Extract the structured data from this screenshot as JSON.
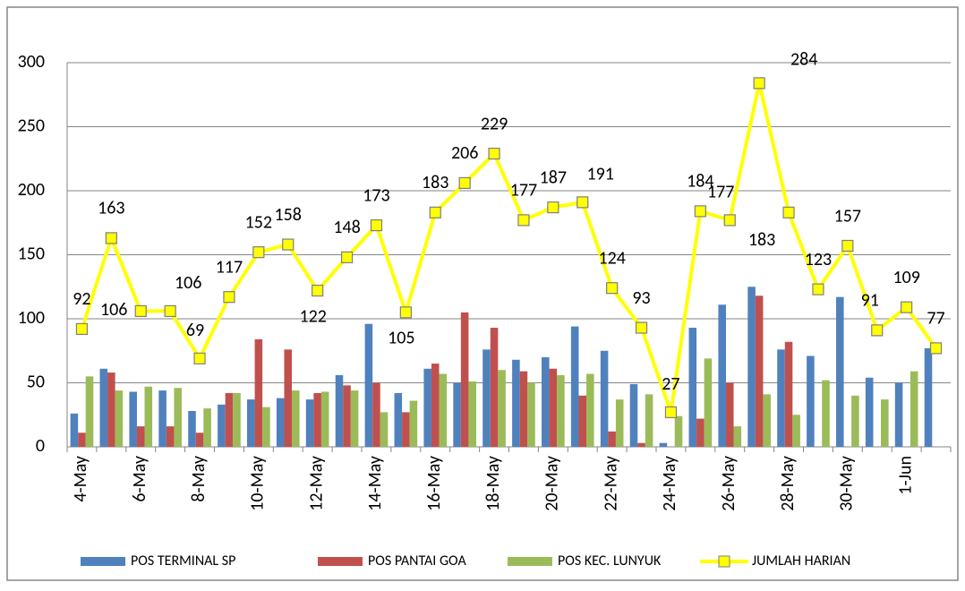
{
  "chart_data": {
    "type": "bar-line",
    "categories": [
      "4-May",
      null,
      "6-May",
      null,
      "8-May",
      null,
      "10-May",
      null,
      "12-May",
      null,
      "14-May",
      null,
      "16-May",
      null,
      "18-May",
      null,
      "20-May",
      null,
      "22-May",
      null,
      "24-May",
      null,
      "26-May",
      null,
      "28-May",
      null,
      "30-May",
      null,
      "1-Jun",
      null
    ],
    "series": [
      {
        "name": "POS TERMINAL SP",
        "color": "#4f81bd",
        "type": "bar",
        "values": [
          26,
          61,
          43,
          44,
          28,
          33,
          37,
          38,
          37,
          56,
          96,
          42,
          61,
          50,
          76,
          68,
          70,
          94,
          75,
          49,
          3,
          93,
          111,
          125,
          76,
          71,
          117,
          54,
          50,
          77
        ]
      },
      {
        "name": "POS PANTAI GOA",
        "color": "#c0504d",
        "type": "bar",
        "values": [
          11,
          58,
          16,
          16,
          11,
          42,
          84,
          76,
          42,
          48,
          50,
          27,
          65,
          105,
          93,
          59,
          61,
          40,
          12,
          3,
          0,
          22,
          50,
          118,
          82,
          0,
          0,
          0,
          0,
          0
        ]
      },
      {
        "name": "POS KEC. LUNYUK",
        "color": "#9bbb59",
        "type": "bar",
        "values": [
          55,
          44,
          47,
          46,
          30,
          42,
          31,
          44,
          43,
          44,
          27,
          36,
          57,
          51,
          60,
          50,
          56,
          57,
          37,
          41,
          24,
          69,
          16,
          41,
          25,
          52,
          40,
          37,
          59,
          0
        ]
      },
      {
        "name": "JUMLAH HARIAN",
        "color": "#ffff00",
        "type": "line",
        "values": [
          92,
          163,
          106,
          106,
          69,
          117,
          152,
          158,
          122,
          148,
          173,
          105,
          183,
          206,
          229,
          177,
          187,
          191,
          124,
          93,
          27,
          184,
          177,
          284,
          183,
          123,
          157,
          91,
          109,
          77
        ]
      }
    ],
    "ylim": [
      0,
      300
    ],
    "yticks": [
      0,
      50,
      100,
      150,
      200,
      250,
      300
    ],
    "grid": true,
    "legend": "bottom"
  }
}
